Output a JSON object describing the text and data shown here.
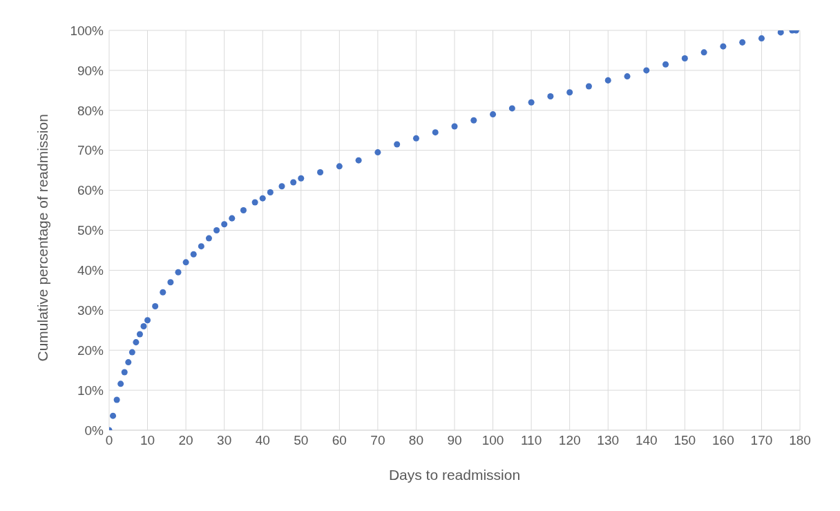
{
  "chart_data": {
    "type": "scatter",
    "xlabel": "Days to readmission",
    "ylabel": "Cumulative percentage of readmission",
    "x": [
      0,
      1,
      2,
      3,
      4,
      5,
      6,
      7,
      8,
      9,
      10,
      12,
      14,
      16,
      18,
      20,
      22,
      24,
      26,
      28,
      30,
      32,
      35,
      38,
      40,
      42,
      45,
      48,
      50,
      55,
      60,
      65,
      70,
      75,
      80,
      85,
      90,
      95,
      100,
      105,
      110,
      115,
      120,
      125,
      130,
      135,
      140,
      145,
      150,
      155,
      160,
      165,
      170,
      175,
      178,
      179
    ],
    "series": [
      {
        "color": "#4472c4",
        "values": [
          0,
          3.6,
          7.6,
          11.6,
          14.5,
          17,
          19.5,
          22,
          24,
          26,
          27.5,
          31,
          34.5,
          37,
          39.5,
          42,
          44,
          46,
          48,
          50,
          51.5,
          53,
          55,
          57,
          58,
          59.5,
          61,
          62,
          63,
          64.5,
          66,
          67.5,
          69.5,
          71.5,
          73,
          74.5,
          76,
          77.5,
          79,
          80.5,
          82,
          83.5,
          84.5,
          86,
          87.5,
          88.5,
          90,
          91.5,
          93,
          94.5,
          96,
          97,
          98,
          99.5,
          100,
          100
        ]
      }
    ],
    "xlim": [
      0,
      180
    ],
    "xticks": [
      0,
      10,
      20,
      30,
      40,
      50,
      60,
      70,
      80,
      90,
      100,
      110,
      120,
      130,
      140,
      150,
      160,
      170,
      180
    ],
    "ylim": [
      0,
      100
    ],
    "yticks": [
      {
        "value": 0,
        "label": "0%"
      },
      {
        "value": 10,
        "label": "10%"
      },
      {
        "value": 20,
        "label": "20%"
      },
      {
        "value": 30,
        "label": "30%"
      },
      {
        "value": 40,
        "label": "40%"
      },
      {
        "value": 50,
        "label": "50%"
      },
      {
        "value": 60,
        "label": "60%"
      },
      {
        "value": 70,
        "label": "70%"
      },
      {
        "value": 80,
        "label": "80%"
      },
      {
        "value": 90,
        "label": "90%"
      },
      {
        "value": 100,
        "label": "100%"
      }
    ],
    "grid": true,
    "marker": "circle",
    "legend": false
  }
}
